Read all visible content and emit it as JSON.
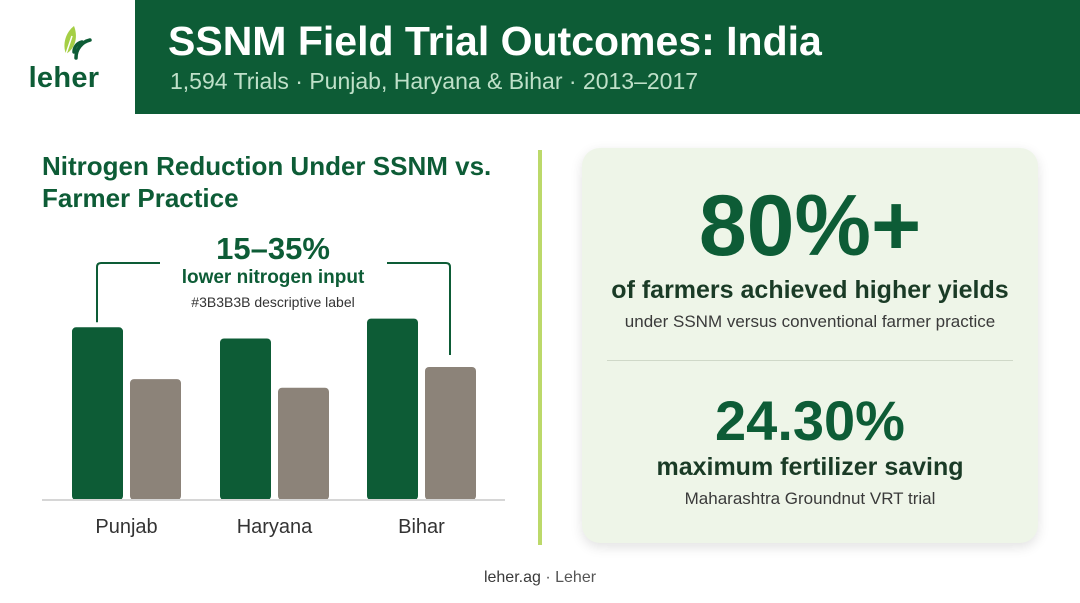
{
  "header": {
    "logo_text": "leher",
    "title": "SSNM Field Trial Outcomes: India",
    "subtitle": "1,594 Trials · Punjab, Haryana & Bihar · 2013–2017"
  },
  "chart_data": {
    "type": "bar",
    "title": "Nitrogen Reduction Under SSNM vs. Farmer Practice",
    "categories": [
      "Punjab",
      "Haryana",
      "Bihar"
    ],
    "series": [
      {
        "values": [
          100,
          93.5,
          105
        ],
        "color": "#0d5c36"
      },
      {
        "values": [
          70,
          65,
          77
        ],
        "color": "#8c8379"
      }
    ],
    "ylim": [
      0,
      110
    ],
    "annotation": {
      "range": "15–35%",
      "text": "lower nitrogen input",
      "subtext": "#3B3B3B descriptive label"
    },
    "xlabel": "",
    "ylabel": "",
    "grid": false,
    "legend": "none"
  },
  "stats": {
    "stat1": {
      "value": "80%+",
      "label": "of farmers achieved higher yields",
      "sublabel": "under SSNM versus conventional farmer practice"
    },
    "stat2": {
      "value": "24.30%",
      "label": "maximum fertilizer saving",
      "sublabel": "Maharashtra Groundnut VRT trial"
    }
  },
  "footer": {
    "site": "leher.ag",
    "separator": "·",
    "brand": "Leher"
  },
  "colors": {
    "brand_green": "#0d5c36",
    "farmer_practice": "#8c8379",
    "accent_lime": "#bcd96a",
    "card_bg": "#eef5e8"
  },
  "icons": {
    "logo": "leaf-signal-icon"
  }
}
